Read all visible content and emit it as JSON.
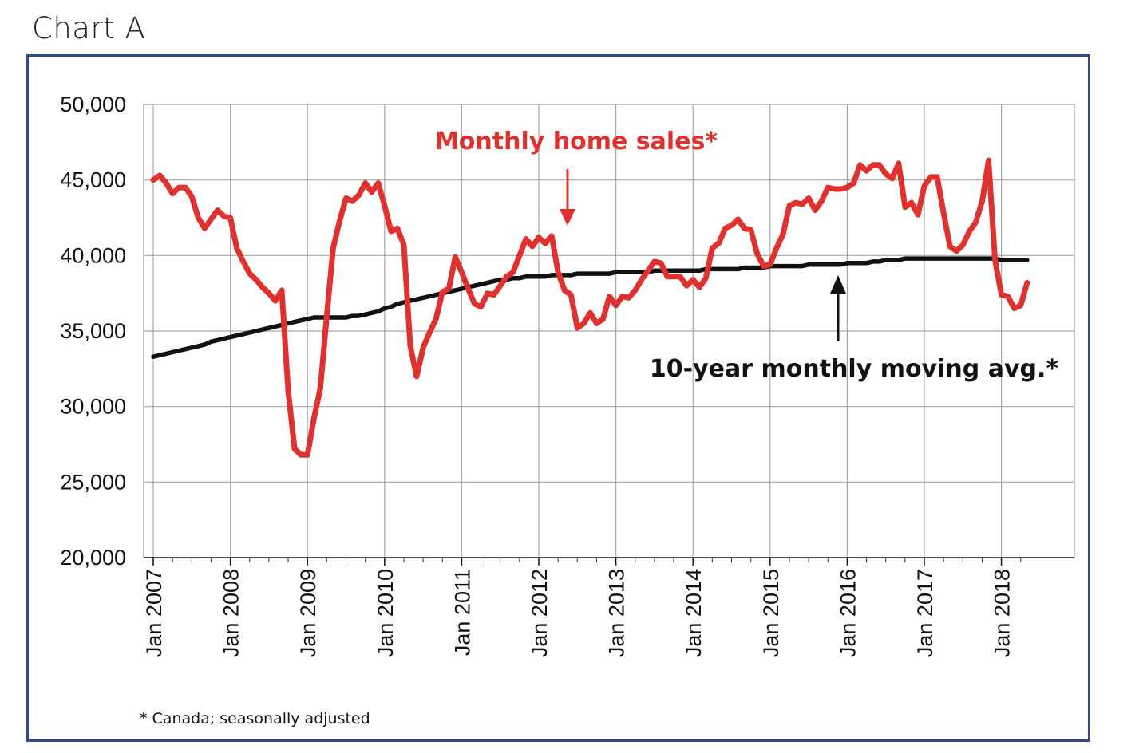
{
  "page": {
    "title": "Chart A"
  },
  "chart_data": {
    "type": "line",
    "title": "",
    "xlabel": "",
    "ylabel": "",
    "ylim": [
      20000,
      50000
    ],
    "yticks": [
      20000,
      25000,
      30000,
      35000,
      40000,
      45000,
      50000
    ],
    "ytick_labels": [
      "20,000",
      "25,000",
      "30,000",
      "35,000",
      "40,000",
      "45,000",
      "50,000"
    ],
    "xtick_labels": [
      "Jan 2007",
      "Jan 2008",
      "Jan 2009",
      "Jan 2010",
      "Jan 2011",
      "Jan 2012",
      "Jan 2013",
      "Jan 2014",
      "Jan 2015",
      "Jan 2016",
      "Jan 2017",
      "Jan 2018"
    ],
    "x_start": "Jan 2007",
    "x_end": "Jun 2018",
    "grid": true,
    "series": [
      {
        "name": "Monthly home sales*",
        "color": "#e0312e",
        "values": [
          45000,
          45300,
          44800,
          44100,
          44500,
          44500,
          43900,
          42500,
          41800,
          42400,
          43000,
          42600,
          42500,
          40500,
          39600,
          38800,
          38400,
          37900,
          37500,
          37000,
          37700,
          31000,
          27200,
          26800,
          26800,
          29200,
          31200,
          36000,
          40500,
          42300,
          43800,
          43600,
          44000,
          44800,
          44200,
          44800,
          43300,
          41600,
          41800,
          40700,
          34000,
          32000,
          33900,
          34900,
          35800,
          37600,
          37800,
          39900,
          38900,
          37800,
          36800,
          36600,
          37500,
          37400,
          38000,
          38600,
          38900,
          40000,
          41100,
          40600,
          41200,
          40800,
          41300,
          38900,
          37700,
          37400,
          35200,
          35500,
          36200,
          35500,
          35800,
          37300,
          36700,
          37300,
          37200,
          37700,
          38400,
          39000,
          39600,
          39500,
          38600,
          38600,
          38600,
          38000,
          38400,
          37900,
          38500,
          40500,
          40800,
          41800,
          42000,
          42400,
          41800,
          41700,
          40100,
          39300,
          39400,
          40500,
          41400,
          43300,
          43500,
          43400,
          43800,
          43000,
          43600,
          44500,
          44400,
          44400,
          44500,
          44800,
          46000,
          45600,
          46000,
          46000,
          45400,
          45100,
          46100,
          43200,
          43500,
          42700,
          44600,
          45200,
          45200,
          42800,
          40600,
          40300,
          40700,
          41600,
          42200,
          43600,
          46300,
          39700,
          37400,
          37300,
          36500,
          36700,
          38200
        ]
      },
      {
        "name": "10-year monthly moving avg.*",
        "color": "#111111",
        "values": [
          33300,
          33400,
          33500,
          33600,
          33700,
          33800,
          33900,
          34000,
          34100,
          34300,
          34400,
          34500,
          34600,
          34700,
          34800,
          34900,
          35000,
          35100,
          35200,
          35300,
          35400,
          35500,
          35600,
          35700,
          35800,
          35900,
          35900,
          35900,
          35900,
          35900,
          35900,
          36000,
          36000,
          36100,
          36200,
          36300,
          36500,
          36600,
          36800,
          36900,
          37000,
          37100,
          37200,
          37300,
          37400,
          37500,
          37600,
          37700,
          37800,
          37900,
          38000,
          38100,
          38200,
          38300,
          38400,
          38400,
          38500,
          38500,
          38600,
          38600,
          38600,
          38600,
          38700,
          38700,
          38700,
          38700,
          38800,
          38800,
          38800,
          38800,
          38800,
          38800,
          38900,
          38900,
          38900,
          38900,
          38900,
          38900,
          39000,
          39000,
          39000,
          39000,
          39000,
          39000,
          39000,
          39000,
          39100,
          39100,
          39100,
          39100,
          39100,
          39100,
          39200,
          39200,
          39200,
          39200,
          39300,
          39300,
          39300,
          39300,
          39300,
          39300,
          39400,
          39400,
          39400,
          39400,
          39400,
          39400,
          39500,
          39500,
          39500,
          39500,
          39600,
          39600,
          39700,
          39700,
          39700,
          39800,
          39800,
          39800,
          39800,
          39800,
          39800,
          39800,
          39800,
          39800,
          39800,
          39800,
          39800,
          39800,
          39800,
          39800,
          39700,
          39700,
          39700,
          39700,
          39700
        ]
      }
    ],
    "annotations": [
      {
        "text": "Monthly home sales*",
        "arrow_to": "May 2012",
        "color": "#e0312e"
      },
      {
        "text": "10-year monthly moving avg.*",
        "arrow_to": "Dec 2015",
        "color": "#111111"
      }
    ],
    "footnote": "* Canada; seasonally adjusted"
  }
}
